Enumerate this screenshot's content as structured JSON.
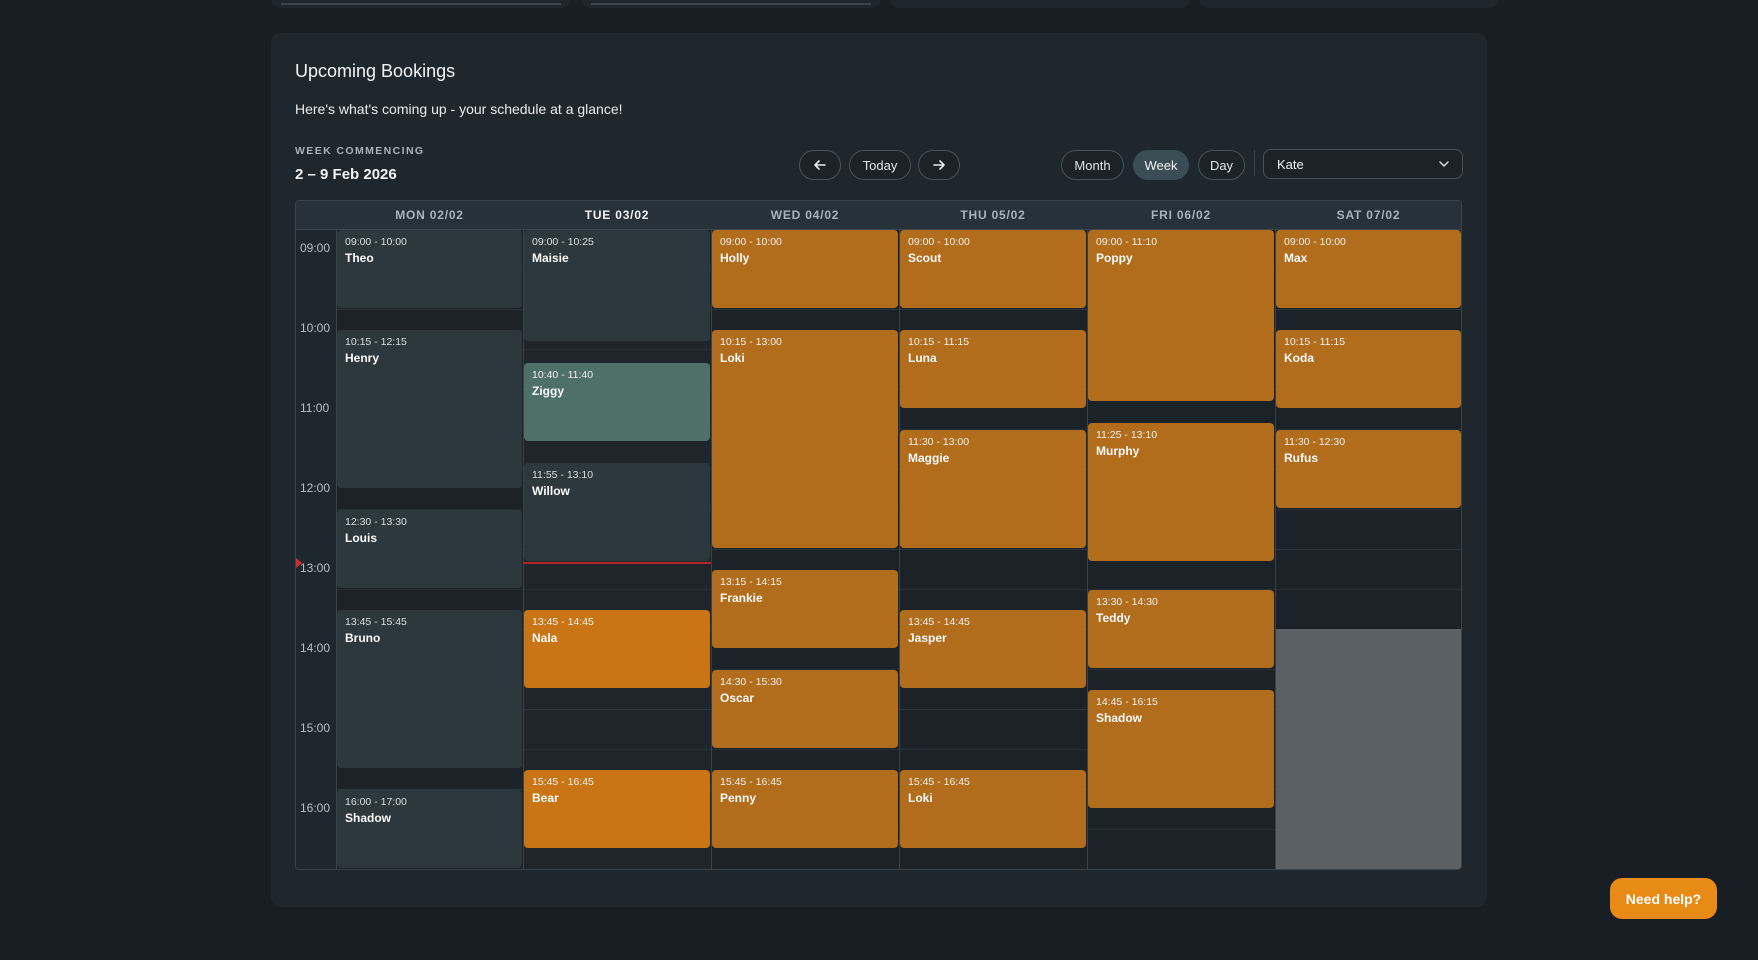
{
  "header": {
    "title": "Upcoming Bookings",
    "subtitle": "Here's what's coming up - your schedule at a glance!",
    "week_label": "WEEK COMMENCING",
    "week_range": "2 – 9 Feb 2026"
  },
  "nav": {
    "prev_icon": "arrow-left-icon",
    "today_label": "Today",
    "next_icon": "arrow-right-icon"
  },
  "views": {
    "month": "Month",
    "week": "Week",
    "day": "Day",
    "active": "Week"
  },
  "staff_select": {
    "value": "Kate",
    "icon": "chevron-down-icon"
  },
  "calendar": {
    "days": [
      {
        "label": "MON 02/02"
      },
      {
        "label": "TUE 03/02"
      },
      {
        "label": "WED 04/02"
      },
      {
        "label": "THU 05/02"
      },
      {
        "label": "FRI 06/02"
      },
      {
        "label": "SAT 07/02"
      }
    ],
    "today_index": 1,
    "hours": [
      "09:00",
      "10:00",
      "11:00",
      "12:00",
      "13:00",
      "14:00",
      "15:00",
      "16:00"
    ],
    "closed": {
      "day": 5,
      "start": "14:00"
    },
    "now": "13:10",
    "events": [
      {
        "day": 0,
        "time": "09:00 - 10:00",
        "name": "Theo",
        "style": "past"
      },
      {
        "day": 0,
        "time": "10:15 - 12:15",
        "name": "Henry",
        "style": "past"
      },
      {
        "day": 0,
        "time": "12:30 - 13:30",
        "name": "Louis",
        "style": "past"
      },
      {
        "day": 0,
        "time": "13:45 - 15:45",
        "name": "Bruno",
        "style": "past"
      },
      {
        "day": 0,
        "time": "16:00 - 17:00",
        "name": "Shadow",
        "style": "past"
      },
      {
        "day": 1,
        "time": "09:00 - 10:25",
        "name": "Maisie",
        "style": "past"
      },
      {
        "day": 1,
        "time": "10:40 - 11:40",
        "name": "Ziggy",
        "style": "green"
      },
      {
        "day": 1,
        "time": "11:55 - 13:10",
        "name": "Willow",
        "style": "past"
      },
      {
        "day": 1,
        "time": "13:45 - 14:45",
        "name": "Nala",
        "style": "bright"
      },
      {
        "day": 1,
        "time": "15:45 - 16:45",
        "name": "Bear",
        "style": "bright"
      },
      {
        "day": 2,
        "time": "09:00 - 10:00",
        "name": "Holly",
        "style": "orange"
      },
      {
        "day": 2,
        "time": "10:15 - 13:00",
        "name": "Loki",
        "style": "orange"
      },
      {
        "day": 2,
        "time": "13:15 - 14:15",
        "name": "Frankie",
        "style": "orange"
      },
      {
        "day": 2,
        "time": "14:30 - 15:30",
        "name": "Oscar",
        "style": "orange"
      },
      {
        "day": 2,
        "time": "15:45 - 16:45",
        "name": "Penny",
        "style": "orange"
      },
      {
        "day": 3,
        "time": "09:00 - 10:00",
        "name": "Scout",
        "style": "orange"
      },
      {
        "day": 3,
        "time": "10:15 - 11:15",
        "name": "Luna",
        "style": "orange"
      },
      {
        "day": 3,
        "time": "11:30 - 13:00",
        "name": "Maggie",
        "style": "orange"
      },
      {
        "day": 3,
        "time": "13:45 - 14:45",
        "name": "Jasper",
        "style": "orange"
      },
      {
        "day": 3,
        "time": "15:45 - 16:45",
        "name": "Loki",
        "style": "orange"
      },
      {
        "day": 4,
        "time": "09:00 - 11:10",
        "name": "Poppy",
        "style": "orange"
      },
      {
        "day": 4,
        "time": "11:25 - 13:10",
        "name": "Murphy",
        "style": "orange"
      },
      {
        "day": 4,
        "time": "13:30 - 14:30",
        "name": "Teddy",
        "style": "orange"
      },
      {
        "day": 4,
        "time": "14:45 - 16:15",
        "name": "Shadow",
        "style": "orange"
      },
      {
        "day": 5,
        "time": "09:00 - 10:00",
        "name": "Max",
        "style": "orange"
      },
      {
        "day": 5,
        "time": "10:15 - 11:15",
        "name": "Koda",
        "style": "orange"
      },
      {
        "day": 5,
        "time": "11:30 - 12:30",
        "name": "Rufus",
        "style": "orange"
      }
    ]
  },
  "help_button": "Need help?"
}
